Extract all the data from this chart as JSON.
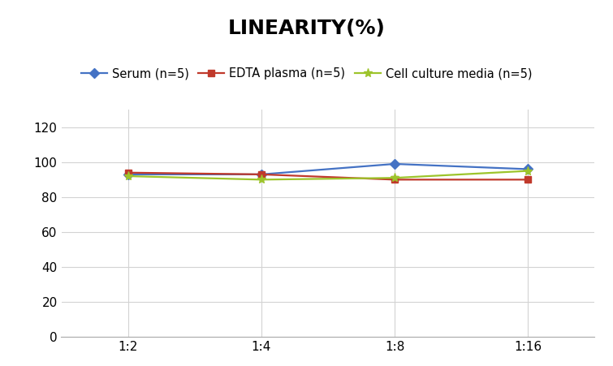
{
  "title": "LINEARITY(%)",
  "x_labels": [
    "1:2",
    "1:4",
    "1:8",
    "1:16"
  ],
  "x_positions": [
    0,
    1,
    2,
    3
  ],
  "series": [
    {
      "label": "Serum (n=5)",
      "values": [
        93,
        93,
        99,
        96
      ],
      "color": "#4472C4",
      "marker": "D",
      "markersize": 6,
      "linewidth": 1.6
    },
    {
      "label": "EDTA plasma (n=5)",
      "values": [
        94,
        93,
        90,
        90
      ],
      "color": "#C0392B",
      "marker": "s",
      "markersize": 6,
      "linewidth": 1.6
    },
    {
      "label": "Cell culture media (n=5)",
      "values": [
        92,
        90,
        91,
        95
      ],
      "color": "#9DC42B",
      "marker": "*",
      "markersize": 8,
      "linewidth": 1.6
    }
  ],
  "ylim": [
    0,
    130
  ],
  "yticks": [
    0,
    20,
    40,
    60,
    80,
    100,
    120
  ],
  "grid_color": "#D3D3D3",
  "background_color": "#FFFFFF",
  "title_fontsize": 18,
  "tick_fontsize": 11,
  "legend_fontsize": 10.5
}
